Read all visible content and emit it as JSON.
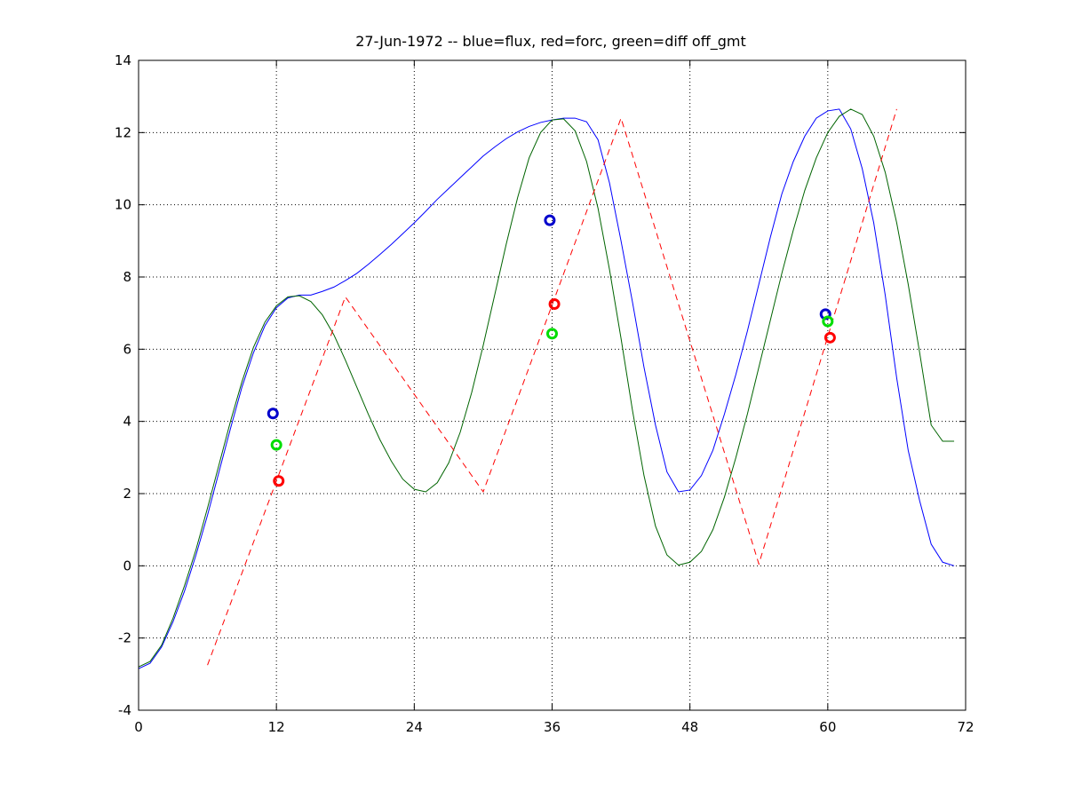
{
  "chart_data": {
    "type": "line",
    "title": "27-Jun-1972 -- blue=flux, red=forc, green=diff off_gmt",
    "xlabel": "",
    "ylabel": "",
    "xlim": [
      0,
      72
    ],
    "ylim": [
      -4,
      14
    ],
    "xticks": [
      0,
      12,
      24,
      36,
      48,
      60,
      72
    ],
    "yticks": [
      -4,
      -2,
      0,
      2,
      4,
      6,
      8,
      10,
      12,
      14
    ],
    "grid": true,
    "colors": {
      "flux": "#0000ff",
      "forc": "#ff0000",
      "diff": "#006400",
      "marker_blue": "#0000cc",
      "marker_red": "#ff0000",
      "marker_green": "#00dd00"
    },
    "series": [
      {
        "line": "solid",
        "color": "#0000ff",
        "x": [
          0,
          1,
          2,
          3,
          4,
          5,
          6,
          7,
          8,
          9,
          10,
          11,
          12,
          13,
          14,
          15,
          16,
          17,
          18,
          19,
          20,
          21,
          22,
          23,
          24,
          25,
          26,
          27,
          28,
          29,
          30,
          31,
          32,
          33,
          34,
          35,
          36,
          37,
          38,
          39,
          40,
          41,
          42,
          43,
          44,
          45,
          46,
          47,
          48,
          49,
          50,
          51,
          52,
          53,
          54,
          55,
          56,
          57,
          58,
          59,
          60,
          61,
          62,
          63,
          64,
          65,
          66,
          67,
          68,
          69,
          70,
          71
        ],
        "y": [
          -2.85,
          -2.7,
          -2.25,
          -1.55,
          -0.7,
          0.3,
          1.4,
          2.6,
          3.8,
          4.95,
          5.9,
          6.65,
          7.15,
          7.42,
          7.5,
          7.5,
          7.6,
          7.72,
          7.9,
          8.1,
          8.35,
          8.62,
          8.9,
          9.2,
          9.5,
          9.82,
          10.15,
          10.45,
          10.75,
          11.05,
          11.35,
          11.6,
          11.83,
          12.02,
          12.17,
          12.28,
          12.35,
          12.4,
          12.4,
          12.3,
          11.8,
          10.6,
          9.0,
          7.3,
          5.5,
          3.9,
          2.6,
          2.05,
          2.1,
          2.5,
          3.2,
          4.2,
          5.3,
          6.5,
          7.8,
          9.1,
          10.3,
          11.2,
          11.9,
          12.4,
          12.6,
          12.65,
          12.1,
          11.0,
          9.5,
          7.5,
          5.2,
          3.2,
          1.8,
          0.6,
          0.1,
          0.0
        ]
      },
      {
        "line": "solid",
        "color": "#006400",
        "x": [
          0,
          1,
          2,
          3,
          4,
          5,
          6,
          7,
          8,
          9,
          10,
          11,
          12,
          13,
          14,
          15,
          16,
          17,
          18,
          19,
          20,
          21,
          22,
          23,
          24,
          25,
          26,
          27,
          28,
          29,
          30,
          31,
          32,
          33,
          34,
          35,
          36,
          37,
          38,
          39,
          40,
          41,
          42,
          43,
          44,
          45,
          46,
          47,
          48,
          49,
          50,
          51,
          52,
          53,
          54,
          55,
          56,
          57,
          58,
          59,
          60,
          61,
          62,
          63,
          64,
          65,
          66,
          67,
          68,
          69,
          70,
          71
        ],
        "y": [
          -2.8,
          -2.65,
          -2.2,
          -1.45,
          -0.55,
          0.45,
          1.6,
          2.8,
          4.0,
          5.1,
          6.05,
          6.75,
          7.2,
          7.45,
          7.48,
          7.32,
          6.95,
          6.4,
          5.7,
          4.95,
          4.2,
          3.5,
          2.9,
          2.4,
          2.12,
          2.05,
          2.3,
          2.85,
          3.7,
          4.8,
          6.1,
          7.5,
          8.9,
          10.2,
          11.3,
          12.0,
          12.35,
          12.38,
          12.05,
          11.2,
          9.9,
          8.2,
          6.3,
          4.3,
          2.5,
          1.1,
          0.3,
          0.02,
          0.1,
          0.4,
          1.0,
          1.9,
          3.0,
          4.2,
          5.5,
          6.8,
          8.1,
          9.3,
          10.4,
          11.3,
          12.0,
          12.45,
          12.65,
          12.5,
          11.9,
          10.9,
          9.5,
          7.8,
          5.9,
          3.9,
          3.45,
          3.45
        ]
      },
      {
        "line": "dashed",
        "color": "#ff0000",
        "x": [
          6,
          18,
          30,
          42,
          54,
          66
        ],
        "y": [
          -2.75,
          7.45,
          2.05,
          12.4,
          0.05,
          12.65
        ]
      }
    ],
    "markers": [
      {
        "color": "#0000cc",
        "x": 11.7,
        "y": 4.22
      },
      {
        "color": "#00dd00",
        "x": 12.0,
        "y": 3.35
      },
      {
        "color": "#ff0000",
        "x": 12.2,
        "y": 2.35
      },
      {
        "color": "#0000cc",
        "x": 35.8,
        "y": 9.57
      },
      {
        "color": "#ff0000",
        "x": 36.2,
        "y": 7.25
      },
      {
        "color": "#00dd00",
        "x": 36.0,
        "y": 6.43
      },
      {
        "color": "#0000cc",
        "x": 59.8,
        "y": 6.97
      },
      {
        "color": "#00dd00",
        "x": 60.0,
        "y": 6.77
      },
      {
        "color": "#ff0000",
        "x": 60.2,
        "y": 6.32
      }
    ]
  }
}
